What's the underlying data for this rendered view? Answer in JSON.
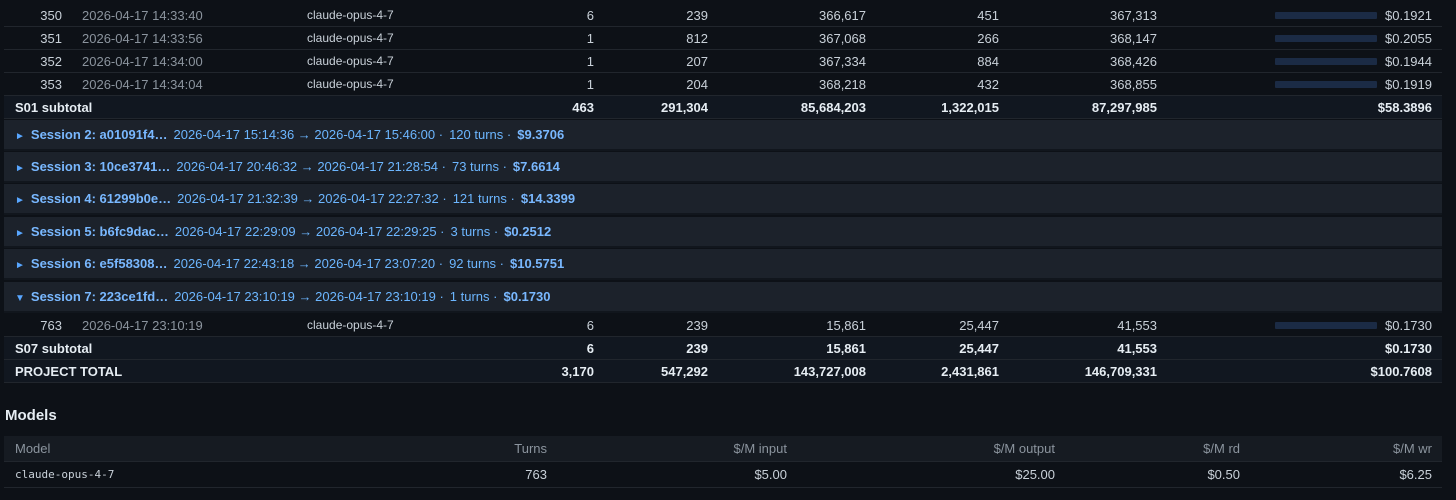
{
  "turns": [
    {
      "idx": "350",
      "time": "2026-04-17 14:33:40",
      "model": "claude-opus-4-7",
      "a": "6",
      "b": "239",
      "c": "366,617",
      "d": "451",
      "e": "367,313",
      "cost": "$0.1921",
      "bar": 0.94
    },
    {
      "idx": "351",
      "time": "2026-04-17 14:33:56",
      "model": "claude-opus-4-7",
      "a": "1",
      "b": "812",
      "c": "367,068",
      "d": "266",
      "e": "368,147",
      "cost": "$0.2055",
      "bar": 0.94
    },
    {
      "idx": "352",
      "time": "2026-04-17 14:34:00",
      "model": "claude-opus-4-7",
      "a": "1",
      "b": "207",
      "c": "367,334",
      "d": "884",
      "e": "368,426",
      "cost": "$0.1944",
      "bar": 0.94
    },
    {
      "idx": "353",
      "time": "2026-04-17 14:34:04",
      "model": "claude-opus-4-7",
      "a": "1",
      "b": "204",
      "c": "368,218",
      "d": "432",
      "e": "368,855",
      "cost": "$0.1919",
      "bar": 0.94
    }
  ],
  "s01_subtotal": {
    "label": "S01 subtotal",
    "a": "463",
    "b": "291,304",
    "c": "85,684,203",
    "d": "1,322,015",
    "e": "87,297,985",
    "cost": "$58.3896"
  },
  "sessions": [
    {
      "tri": "►",
      "name": "Session 2: a01091f4…",
      "range": "2026-04-17 15:14:36 → 2026-04-17 15:46:00 ·",
      "turns": "120 turns ·",
      "cost": "$9.3706"
    },
    {
      "tri": "►",
      "name": "Session 3: 10ce3741…",
      "range": "2026-04-17 20:46:32 → 2026-04-17 21:28:54 ·",
      "turns": "73 turns ·",
      "cost": "$7.6614"
    },
    {
      "tri": "►",
      "name": "Session 4: 61299b0e…",
      "range": "2026-04-17 21:32:39 → 2026-04-17 22:27:32 ·",
      "turns": "121 turns ·",
      "cost": "$14.3399"
    },
    {
      "tri": "►",
      "name": "Session 5: b6fc9dac…",
      "range": "2026-04-17 22:29:09 → 2026-04-17 22:29:25 ·",
      "turns": "3 turns ·",
      "cost": "$0.2512"
    },
    {
      "tri": "►",
      "name": "Session 6: e5f58308…",
      "range": "2026-04-17 22:43:18 → 2026-04-17 23:07:20 ·",
      "turns": "92 turns ·",
      "cost": "$10.5751"
    },
    {
      "tri": "▼",
      "name": "Session 7: 223ce1fd…",
      "range": "2026-04-17 23:10:19 → 2026-04-17 23:10:19 ·",
      "turns": "1 turns ·",
      "cost": "$0.1730"
    }
  ],
  "s07_turn": {
    "idx": "763",
    "time": "2026-04-17 23:10:19",
    "model": "claude-opus-4-7",
    "a": "6",
    "b": "239",
    "c": "15,861",
    "d": "25,447",
    "e": "41,553",
    "cost": "$0.1730",
    "bar": 0.94
  },
  "s07_subtotal": {
    "label": "S07 subtotal",
    "a": "6",
    "b": "239",
    "c": "15,861",
    "d": "25,447",
    "e": "41,553",
    "cost": "$0.1730"
  },
  "project_total": {
    "label": "PROJECT TOTAL",
    "a": "3,170",
    "b": "547,292",
    "c": "143,727,008",
    "d": "2,431,861",
    "e": "146,709,331",
    "cost": "$100.7608"
  },
  "models": {
    "title": "Models",
    "headers": [
      "Model",
      "Turns",
      "$/M input",
      "$/M output",
      "$/M rd",
      "$/M wr"
    ],
    "rows": [
      [
        "claude-opus-4-7",
        "763",
        "$5.00",
        "$25.00",
        "$0.50",
        "$6.25"
      ]
    ]
  },
  "colors": {
    "accent": "#58a6ff",
    "background": "#0d1117",
    "session_row": "#1c222b",
    "bar": "#1f3a66"
  }
}
